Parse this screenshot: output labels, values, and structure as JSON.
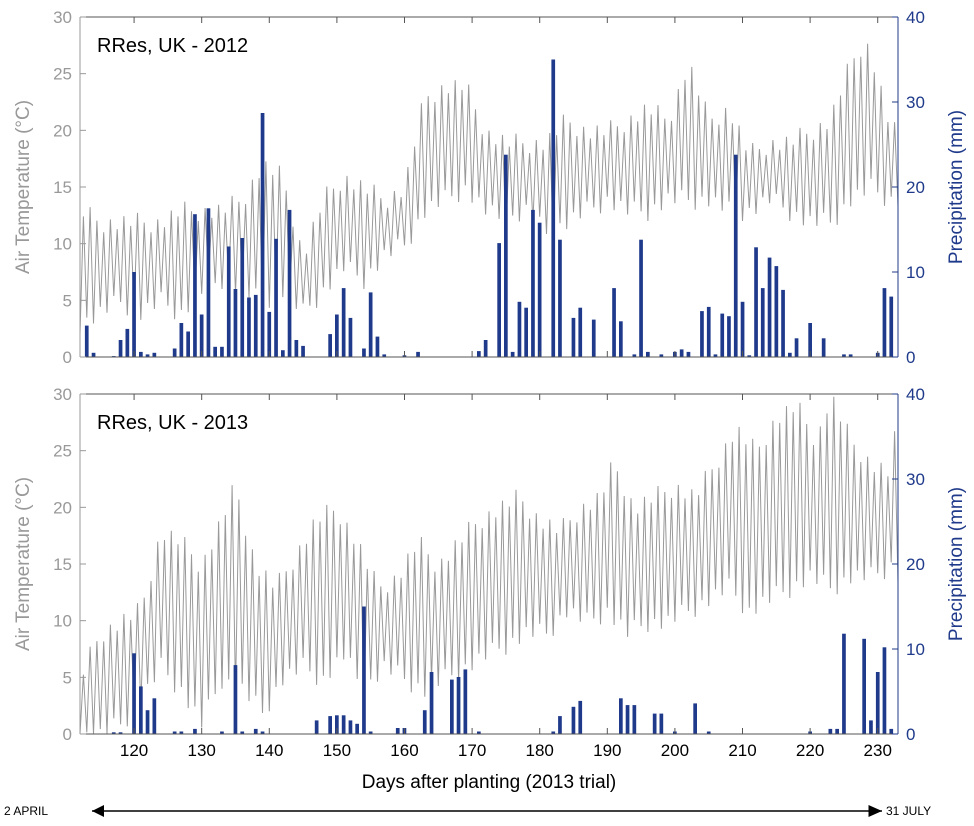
{
  "chart_data": [
    {
      "type": "bar+line",
      "title": "RRes, UK - 2012",
      "xlabel": "",
      "ylabel_left": "Air Temperature (°C)",
      "ylabel_right": "Precipitation (mm)",
      "xlim": [
        112,
        233
      ],
      "ylim_left": [
        0,
        30
      ],
      "ylim_right": [
        0,
        40
      ],
      "xticks": [
        120,
        130,
        140,
        150,
        160,
        170,
        180,
        190,
        200,
        210,
        220,
        230
      ],
      "yticks_left": [
        0,
        5,
        10,
        15,
        20,
        25,
        30
      ],
      "yticks_right": [
        0,
        10,
        20,
        30,
        40
      ],
      "colors": {
        "temperature": "#999999",
        "precipitation": "#1f3a8a",
        "left_axis": "#999999",
        "right_axis": "#1f3a8a"
      },
      "temperature_min": [
        [
          112,
          3
        ],
        [
          115,
          4
        ],
        [
          118,
          5
        ],
        [
          121,
          4
        ],
        [
          124,
          5
        ],
        [
          127,
          4
        ],
        [
          130,
          6
        ],
        [
          133,
          7
        ],
        [
          136,
          6
        ],
        [
          139,
          5
        ],
        [
          142,
          6
        ],
        [
          145,
          4
        ],
        [
          148,
          6
        ],
        [
          151,
          8
        ],
        [
          154,
          7
        ],
        [
          157,
          9
        ],
        [
          160,
          10
        ],
        [
          163,
          13
        ],
        [
          166,
          14
        ],
        [
          169,
          15
        ],
        [
          172,
          13
        ],
        [
          175,
          12
        ],
        [
          178,
          13
        ],
        [
          181,
          11
        ],
        [
          184,
          12
        ],
        [
          187,
          13
        ],
        [
          190,
          14
        ],
        [
          193,
          13
        ],
        [
          196,
          13
        ],
        [
          199,
          14
        ],
        [
          202,
          14
        ],
        [
          205,
          14
        ],
        [
          208,
          13
        ],
        [
          211,
          13
        ],
        [
          214,
          14
        ],
        [
          217,
          13
        ],
        [
          220,
          12
        ],
        [
          223,
          12
        ],
        [
          226,
          14
        ],
        [
          229,
          15
        ],
        [
          232,
          14
        ],
        [
          233,
          14
        ]
      ],
      "temperature_max": [
        [
          112,
          13
        ],
        [
          115,
          12
        ],
        [
          118,
          12
        ],
        [
          121,
          12
        ],
        [
          124,
          12
        ],
        [
          127,
          13
        ],
        [
          130,
          13
        ],
        [
          133,
          13
        ],
        [
          136,
          14
        ],
        [
          139,
          17
        ],
        [
          142,
          16
        ],
        [
          145,
          9
        ],
        [
          148,
          14
        ],
        [
          151,
          16
        ],
        [
          154,
          15
        ],
        [
          157,
          14
        ],
        [
          160,
          15
        ],
        [
          163,
          23
        ],
        [
          166,
          24
        ],
        [
          169,
          24
        ],
        [
          172,
          20
        ],
        [
          175,
          19
        ],
        [
          178,
          19
        ],
        [
          181,
          19
        ],
        [
          184,
          21
        ],
        [
          187,
          20
        ],
        [
          190,
          20
        ],
        [
          193,
          21
        ],
        [
          196,
          22
        ],
        [
          199,
          21
        ],
        [
          202,
          26
        ],
        [
          205,
          21
        ],
        [
          208,
          22
        ],
        [
          211,
          18
        ],
        [
          214,
          19
        ],
        [
          217,
          19
        ],
        [
          220,
          20
        ],
        [
          223,
          21
        ],
        [
          226,
          26
        ],
        [
          228,
          28
        ],
        [
          229,
          27
        ],
        [
          232,
          20
        ],
        [
          233,
          20
        ]
      ],
      "precipitation": [
        [
          113,
          3.7
        ],
        [
          114,
          0.5
        ],
        [
          117,
          0.1
        ],
        [
          118,
          2
        ],
        [
          119,
          3.3
        ],
        [
          120,
          10
        ],
        [
          121,
          0.6
        ],
        [
          122,
          0.3
        ],
        [
          123,
          0.5
        ],
        [
          126,
          1
        ],
        [
          127,
          4
        ],
        [
          128,
          3
        ],
        [
          129,
          16.8
        ],
        [
          130,
          5
        ],
        [
          131,
          17.5
        ],
        [
          132,
          1.2
        ],
        [
          133,
          1.2
        ],
        [
          134,
          13
        ],
        [
          135,
          8
        ],
        [
          136,
          14
        ],
        [
          137,
          7
        ],
        [
          138,
          7.3
        ],
        [
          139,
          28.7
        ],
        [
          140,
          5.3
        ],
        [
          141,
          13.9
        ],
        [
          142,
          0.8
        ],
        [
          143,
          17.3
        ],
        [
          144,
          2
        ],
        [
          145,
          1.3
        ],
        [
          149,
          2.7
        ],
        [
          150,
          5
        ],
        [
          151,
          8.1
        ],
        [
          152,
          4.6
        ],
        [
          154,
          1
        ],
        [
          155,
          7.6
        ],
        [
          156,
          2.4
        ],
        [
          157,
          0.3
        ],
        [
          160,
          0.2
        ],
        [
          162,
          0.6
        ],
        [
          171,
          0.7
        ],
        [
          172,
          2
        ],
        [
          174,
          13.4
        ],
        [
          175,
          23.8
        ],
        [
          176,
          0.6
        ],
        [
          177,
          6.5
        ],
        [
          178,
          5.8
        ],
        [
          179,
          17.3
        ],
        [
          180,
          15.8
        ],
        [
          182,
          35
        ],
        [
          183,
          13.8
        ],
        [
          185,
          4.6
        ],
        [
          186,
          5.8
        ],
        [
          188,
          4.4
        ],
        [
          191,
          8.1
        ],
        [
          192,
          4.2
        ],
        [
          194,
          0.3
        ],
        [
          195,
          13.8
        ],
        [
          196,
          0.6
        ],
        [
          198,
          0.3
        ],
        [
          200,
          0.6
        ],
        [
          201,
          0.9
        ],
        [
          202,
          0.6
        ],
        [
          204,
          5.4
        ],
        [
          205,
          5.9
        ],
        [
          206,
          0.3
        ],
        [
          207,
          5.1
        ],
        [
          208,
          4.8
        ],
        [
          209,
          23.8
        ],
        [
          210,
          6.5
        ],
        [
          211,
          0.2
        ],
        [
          212,
          12.9
        ],
        [
          213,
          8.1
        ],
        [
          214,
          11.7
        ],
        [
          215,
          10.7
        ],
        [
          216,
          7.9
        ],
        [
          217,
          0.5
        ],
        [
          218,
          2.2
        ],
        [
          220,
          4
        ],
        [
          222,
          2.2
        ],
        [
          225,
          0.3
        ],
        [
          226,
          0.3
        ],
        [
          230,
          0.5
        ],
        [
          231,
          8.1
        ],
        [
          232,
          7.1
        ]
      ]
    },
    {
      "type": "bar+line",
      "title": "RRes, UK - 2013",
      "xlabel": "Days after planting (2013 trial)",
      "ylabel_left": "Air Temperature (°C)",
      "ylabel_right": "Precipitation (mm)",
      "xlim": [
        112,
        233
      ],
      "ylim_left": [
        0,
        30
      ],
      "ylim_right": [
        0,
        40
      ],
      "xticks": [
        120,
        130,
        140,
        150,
        160,
        170,
        180,
        190,
        200,
        210,
        220,
        230
      ],
      "yticks_left": [
        0,
        5,
        10,
        15,
        20,
        25,
        30
      ],
      "yticks_right": [
        0,
        10,
        20,
        30,
        40
      ],
      "colors": {
        "temperature": "#999999",
        "precipitation": "#1f3a8a",
        "left_axis": "#999999",
        "right_axis": "#1f3a8a"
      },
      "temperature_min": [
        [
          112,
          0
        ],
        [
          115,
          0
        ],
        [
          118,
          1
        ],
        [
          121,
          3
        ],
        [
          124,
          6
        ],
        [
          127,
          4
        ],
        [
          130,
          1
        ],
        [
          133,
          5
        ],
        [
          136,
          4
        ],
        [
          139,
          2
        ],
        [
          142,
          5
        ],
        [
          145,
          6
        ],
        [
          148,
          5
        ],
        [
          151,
          7
        ],
        [
          154,
          4
        ],
        [
          157,
          6
        ],
        [
          160,
          5
        ],
        [
          163,
          4
        ],
        [
          166,
          5
        ],
        [
          169,
          6
        ],
        [
          172,
          7
        ],
        [
          175,
          8
        ],
        [
          178,
          9
        ],
        [
          181,
          9
        ],
        [
          184,
          11
        ],
        [
          187,
          10
        ],
        [
          190,
          11
        ],
        [
          193,
          9
        ],
        [
          196,
          10
        ],
        [
          199,
          10
        ],
        [
          202,
          11
        ],
        [
          205,
          12
        ],
        [
          208,
          13
        ],
        [
          211,
          11
        ],
        [
          214,
          12
        ],
        [
          217,
          13
        ],
        [
          220,
          14
        ],
        [
          223,
          13
        ],
        [
          226,
          14
        ],
        [
          229,
          14
        ],
        [
          232,
          15
        ],
        [
          233,
          14
        ]
      ],
      "temperature_max": [
        [
          112,
          5
        ],
        [
          115,
          9
        ],
        [
          118,
          10
        ],
        [
          121,
          11
        ],
        [
          124,
          18
        ],
        [
          127,
          17
        ],
        [
          130,
          15
        ],
        [
          133,
          19
        ],
        [
          135,
          22
        ],
        [
          138,
          15
        ],
        [
          141,
          13
        ],
        [
          144,
          16
        ],
        [
          147,
          19
        ],
        [
          150,
          20
        ],
        [
          153,
          17
        ],
        [
          156,
          13
        ],
        [
          159,
          14
        ],
        [
          162,
          17
        ],
        [
          165,
          15
        ],
        [
          168,
          17
        ],
        [
          171,
          19
        ],
        [
          174,
          20
        ],
        [
          177,
          21
        ],
        [
          180,
          19
        ],
        [
          183,
          18
        ],
        [
          186,
          20
        ],
        [
          189,
          21
        ],
        [
          191,
          24
        ],
        [
          194,
          20
        ],
        [
          197,
          21
        ],
        [
          200,
          22
        ],
        [
          203,
          21
        ],
        [
          206,
          24
        ],
        [
          209,
          27
        ],
        [
          212,
          25
        ],
        [
          215,
          28
        ],
        [
          218,
          29
        ],
        [
          221,
          26
        ],
        [
          223,
          30
        ],
        [
          226,
          26
        ],
        [
          229,
          24
        ],
        [
          232,
          23
        ],
        [
          233,
          29
        ]
      ],
      "precipitation": [
        [
          117,
          0.2
        ],
        [
          118,
          0.2
        ],
        [
          120,
          9.5
        ],
        [
          121,
          5.6
        ],
        [
          122,
          2.8
        ],
        [
          123,
          4.2
        ],
        [
          126,
          0.3
        ],
        [
          127,
          0.3
        ],
        [
          129,
          0.6
        ],
        [
          133,
          0.3
        ],
        [
          135,
          8.1
        ],
        [
          136,
          0.3
        ],
        [
          138,
          0.6
        ],
        [
          139,
          0.3
        ],
        [
          147,
          1.6
        ],
        [
          149,
          2.1
        ],
        [
          150,
          2.2
        ],
        [
          151,
          2.2
        ],
        [
          152,
          1.6
        ],
        [
          153,
          1.2
        ],
        [
          154,
          15
        ],
        [
          155,
          0.3
        ],
        [
          159,
          0.7
        ],
        [
          160,
          0.7
        ],
        [
          163,
          2.8
        ],
        [
          164,
          7.3
        ],
        [
          167,
          6.4
        ],
        [
          168,
          6.7
        ],
        [
          169,
          7.6
        ],
        [
          171,
          0.3
        ],
        [
          182,
          0.3
        ],
        [
          183,
          2.1
        ],
        [
          185,
          3.2
        ],
        [
          186,
          3.9
        ],
        [
          192,
          4.2
        ],
        [
          193,
          3.4
        ],
        [
          194,
          3.4
        ],
        [
          197,
          2.4
        ],
        [
          198,
          2.4
        ],
        [
          200,
          0.3
        ],
        [
          203,
          3.6
        ],
        [
          205,
          0.3
        ],
        [
          220,
          0.3
        ],
        [
          223,
          0.6
        ],
        [
          224,
          0.6
        ],
        [
          225,
          11.8
        ],
        [
          228,
          11.2
        ],
        [
          229,
          1.6
        ],
        [
          230,
          7.3
        ],
        [
          231,
          10.2
        ],
        [
          232,
          0.6
        ]
      ]
    }
  ],
  "timeline": {
    "start_label": "2 APRIL",
    "end_label": "31 JULY"
  }
}
